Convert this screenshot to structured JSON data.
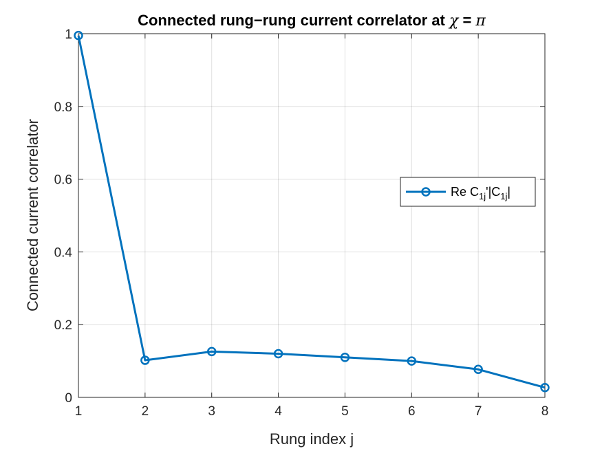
{
  "chart_data": {
    "type": "line",
    "title": {
      "prefix": "Connected rung−rung current correlator at ",
      "symbol": "χ",
      "mid": " = ",
      "value": "π"
    },
    "xlabel": "Rung index j",
    "ylabel": "Connected current correlator",
    "xlim": [
      1,
      8
    ],
    "ylim": [
      0,
      1
    ],
    "xticks": [
      1,
      2,
      3,
      4,
      5,
      6,
      7,
      8
    ],
    "yticks": [
      0,
      0.2,
      0.4,
      0.6,
      0.8,
      1
    ],
    "xtick_labels": [
      "1",
      "2",
      "3",
      "4",
      "5",
      "6",
      "7",
      "8"
    ],
    "ytick_labels": [
      "0",
      "0.2",
      "0.4",
      "0.6",
      "0.8",
      "1"
    ],
    "grid": true,
    "legend_position": "right",
    "series": [
      {
        "legend_label": {
          "p1": "Re C",
          "s1": "1j",
          "p2": "'|C",
          "s2": "1j",
          "p3": "|"
        },
        "color": "#0072BD",
        "marker": "circle",
        "x": [
          1,
          2,
          3,
          4,
          5,
          6,
          7,
          8
        ],
        "y": [
          0.995,
          0.102,
          0.126,
          0.12,
          0.11,
          0.1,
          0.077,
          0.027
        ]
      }
    ]
  }
}
